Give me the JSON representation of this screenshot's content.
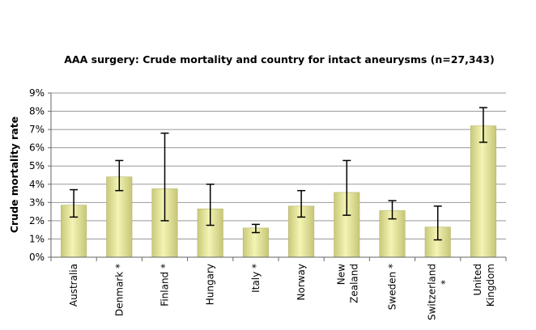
{
  "chart_data": {
    "type": "bar",
    "title": "AAA surgery: Crude mortality and country for intact aneurysms (n=27,343)",
    "y_label": "Crude mortality rate",
    "categories": [
      "Australia",
      "Denmark *",
      "Finland *",
      "Hungary",
      "Italy *",
      "Norway",
      "New\nZealand",
      "Sweden *",
      "Switzerland\n*",
      "United\nKingdom"
    ],
    "values": [
      2.85,
      4.4,
      3.75,
      2.65,
      1.6,
      2.8,
      3.55,
      2.55,
      1.65,
      7.2
    ],
    "ci_low": [
      2.2,
      3.65,
      2.0,
      1.75,
      1.35,
      2.2,
      2.3,
      2.1,
      0.95,
      6.3
    ],
    "ci_high": [
      3.7,
      5.3,
      6.8,
      4.0,
      1.8,
      3.65,
      5.3,
      3.1,
      2.8,
      8.2
    ],
    "color": "#d9d98c",
    "ylim": [
      0,
      9
    ],
    "yticks": [
      {
        "value": 0,
        "label": "0%"
      },
      {
        "value": 1,
        "label": "1%"
      },
      {
        "value": 2,
        "label": "2%"
      },
      {
        "value": 3,
        "label": "3%"
      },
      {
        "value": 4,
        "label": "4%"
      },
      {
        "value": 5,
        "label": "5%"
      },
      {
        "value": 6,
        "label": "6%"
      },
      {
        "value": 7,
        "label": "7%"
      },
      {
        "value": 8,
        "label": "8%"
      },
      {
        "value": 9,
        "label": "9%"
      }
    ],
    "grid": true
  }
}
